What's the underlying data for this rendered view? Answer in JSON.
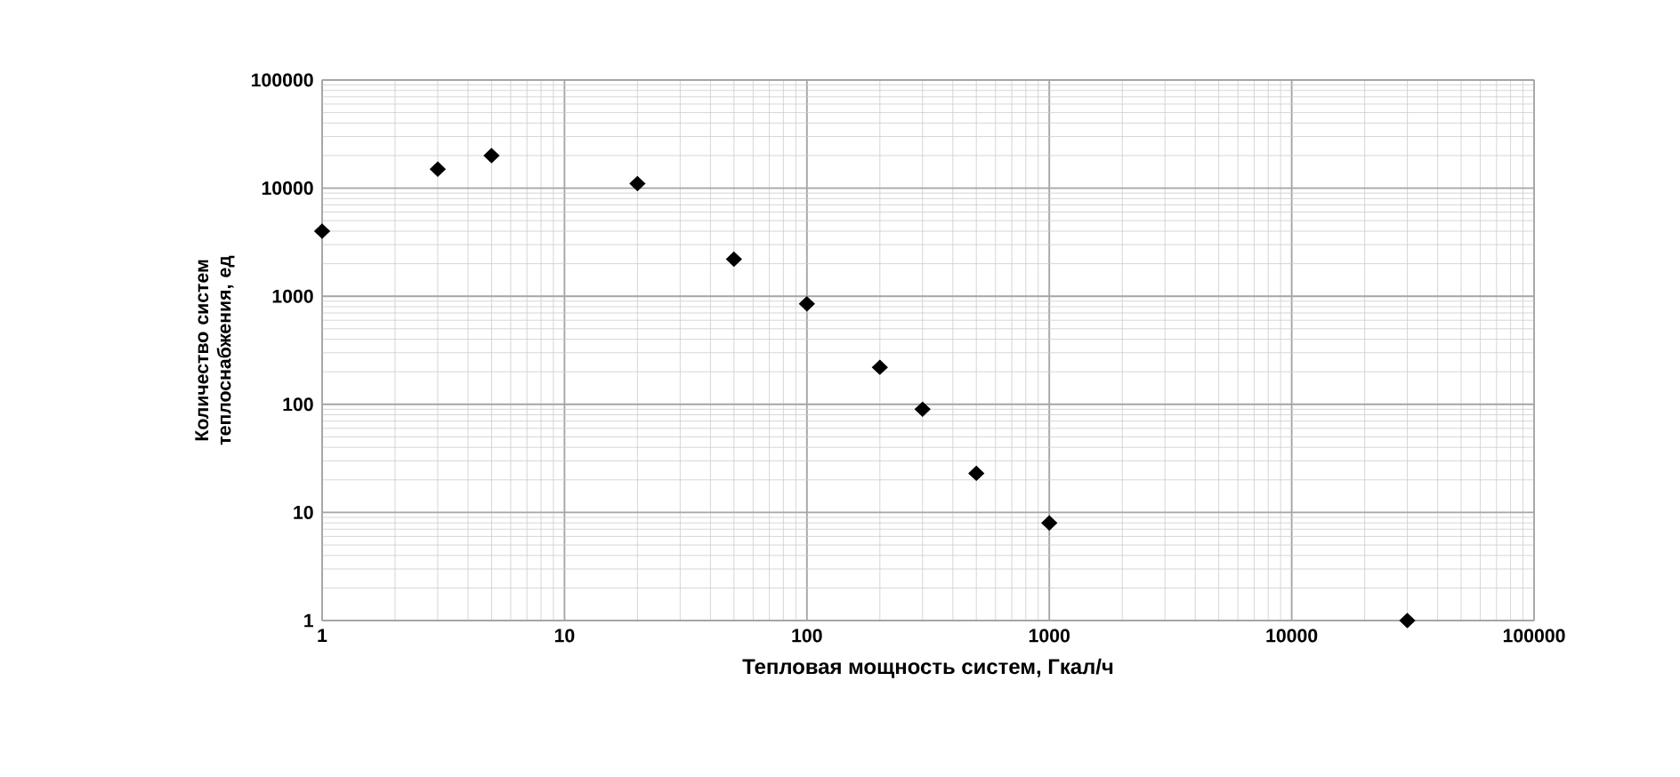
{
  "chart_data": {
    "type": "scatter",
    "xlabel": "Тепловая мощность систем, Гкал/ч",
    "ylabel": "Количество систем теплоснабжения, ед",
    "log": "xy",
    "grid": true,
    "marker": "diamond",
    "xlim": [
      1,
      100000
    ],
    "ylim": [
      1,
      100000
    ],
    "xticks": [
      1,
      10,
      100,
      1000,
      10000,
      100000
    ],
    "yticks": [
      1,
      10,
      100,
      1000,
      10000,
      100000
    ],
    "series": [
      {
        "color": "#000000",
        "x": [
          1,
          3,
          5,
          20,
          50,
          100,
          200,
          300,
          500,
          1000,
          30000
        ],
        "values": [
          4000,
          15000,
          20000,
          11000,
          2200,
          850,
          220,
          90,
          23,
          8,
          1
        ]
      }
    ]
  }
}
